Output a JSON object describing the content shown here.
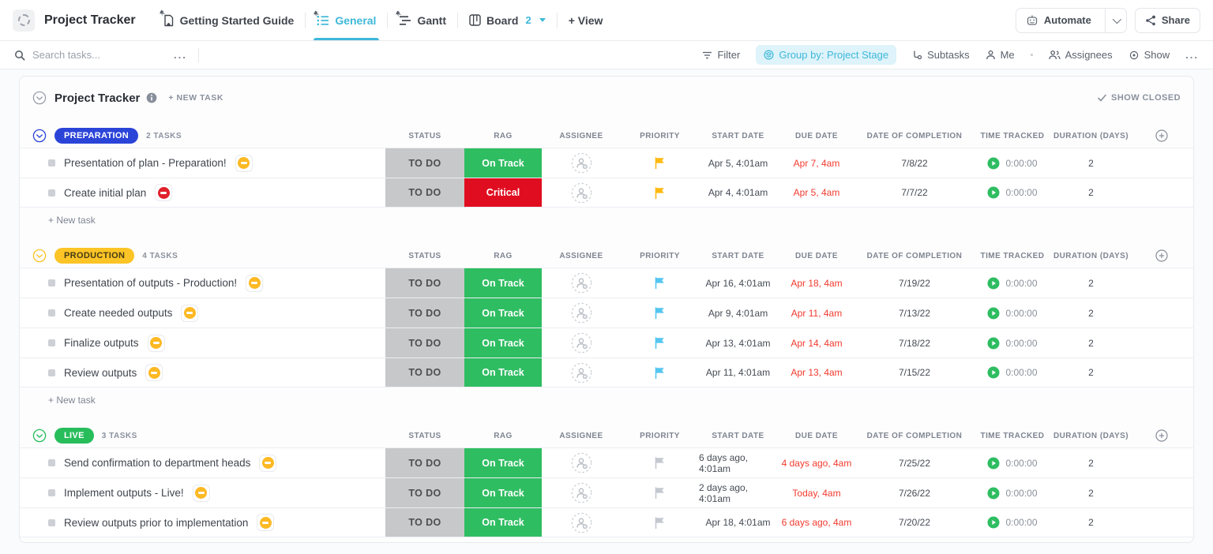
{
  "header": {
    "title": "Project Tracker",
    "tabs": [
      {
        "label": "Getting Started Guide",
        "icon": "doc-icon",
        "active": false,
        "pinned": true,
        "badge": ""
      },
      {
        "label": "General",
        "icon": "list-icon",
        "active": true,
        "pinned": true,
        "badge": ""
      },
      {
        "label": "Gantt",
        "icon": "gantt-icon",
        "active": false,
        "pinned": true,
        "badge": ""
      },
      {
        "label": "Board",
        "icon": "board-icon",
        "active": false,
        "pinned": false,
        "badge": "2"
      }
    ],
    "add_view_label": "+ View",
    "automate_label": "Automate",
    "share_label": "Share"
  },
  "toolbar": {
    "search_placeholder": "Search tasks...",
    "more_label": "...",
    "filter_label": "Filter",
    "group_by_label": "Group by: Project Stage",
    "subtasks_label": "Subtasks",
    "me_label": "Me",
    "assignees_label": "Assignees",
    "show_label": "Show",
    "overflow_label": "..."
  },
  "list": {
    "title": "Project Tracker",
    "new_task_label": "+ NEW TASK",
    "show_closed_label": "SHOW CLOSED",
    "add_row_label": "+ New task",
    "columns": [
      "STATUS",
      "RAG",
      "ASSIGNEE",
      "PRIORITY",
      "START DATE",
      "DUE DATE",
      "DATE OF COMPLETION",
      "TIME TRACKED",
      "DURATION (DAYS)"
    ],
    "colors": {
      "status_todo_bg": "#c7c8ca",
      "on_track_green": "#2fbd62",
      "critical_red": "#e00d20",
      "overdue_red": "#f23a2e",
      "accent_teal": "#3db8d9"
    },
    "groups": [
      {
        "name": "PREPARATION",
        "count_label": "2 TASKS",
        "color": "#2b44d8",
        "text_color": "#ffffff",
        "tasks": [
          {
            "name": "Presentation of plan - Preparation!",
            "badge_color": "#fdb924",
            "status": "TO DO",
            "rag": "On Track",
            "rag_color": "#2fbd62",
            "flag_color": "#ffb90f",
            "start": "Apr 5, 4:01am",
            "due": "Apr 7, 4am",
            "completion": "7/8/22",
            "time": "0:00:00",
            "duration": "2"
          },
          {
            "name": "Create initial plan",
            "badge_color": "#e0212b",
            "status": "TO DO",
            "rag": "Critical",
            "rag_color": "#e00d20",
            "flag_color": "#ffb90f",
            "start": "Apr 4, 4:01am",
            "due": "Apr 5, 4am",
            "completion": "7/7/22",
            "time": "0:00:00",
            "duration": "2"
          }
        ]
      },
      {
        "name": "PRODUCTION",
        "count_label": "4 TASKS",
        "color": "#fcc426",
        "text_color": "#443a15",
        "tasks": [
          {
            "name": "Presentation of outputs - Production!",
            "badge_color": "#fdb924",
            "status": "TO DO",
            "rag": "On Track",
            "rag_color": "#2fbd62",
            "flag_color": "#54c6f0",
            "start": "Apr 16, 4:01am",
            "due": "Apr 18, 4am",
            "completion": "7/19/22",
            "time": "0:00:00",
            "duration": "2"
          },
          {
            "name": "Create needed outputs",
            "badge_color": "#fdb924",
            "status": "TO DO",
            "rag": "On Track",
            "rag_color": "#2fbd62",
            "flag_color": "#54c6f0",
            "start": "Apr 9, 4:01am",
            "due": "Apr 11, 4am",
            "completion": "7/13/22",
            "time": "0:00:00",
            "duration": "2"
          },
          {
            "name": "Finalize outputs",
            "badge_color": "#fdb924",
            "status": "TO DO",
            "rag": "On Track",
            "rag_color": "#2fbd62",
            "flag_color": "#54c6f0",
            "start": "Apr 13, 4:01am",
            "due": "Apr 14, 4am",
            "completion": "7/18/22",
            "time": "0:00:00",
            "duration": "2"
          },
          {
            "name": "Review outputs",
            "badge_color": "#fdb924",
            "status": "TO DO",
            "rag": "On Track",
            "rag_color": "#2fbd62",
            "flag_color": "#54c6f0",
            "start": "Apr 11, 4:01am",
            "due": "Apr 13, 4am",
            "completion": "7/15/22",
            "time": "0:00:00",
            "duration": "2"
          }
        ]
      },
      {
        "name": "LIVE",
        "count_label": "3 TASKS",
        "color": "#27bd5b",
        "text_color": "#ffffff",
        "tasks": [
          {
            "name": "Send confirmation to department heads",
            "badge_color": "#fdb924",
            "status": "TO DO",
            "rag": "On Track",
            "rag_color": "#2fbd62",
            "flag_color": "#c4c9d0",
            "start": "6 days ago, 4:01am",
            "due": "4 days ago, 4am",
            "completion": "7/25/22",
            "time": "0:00:00",
            "duration": "2"
          },
          {
            "name": "Implement outputs - Live!",
            "badge_color": "#fdb924",
            "status": "TO DO",
            "rag": "On Track",
            "rag_color": "#2fbd62",
            "flag_color": "#c4c9d0",
            "start": "2 days ago, 4:01am",
            "due": "Today, 4am",
            "completion": "7/26/22",
            "time": "0:00:00",
            "duration": "2"
          },
          {
            "name": "Review outputs prior to implementation",
            "badge_color": "#fdb924",
            "status": "TO DO",
            "rag": "On Track",
            "rag_color": "#2fbd62",
            "flag_color": "#c4c9d0",
            "start": "Apr 18, 4:01am",
            "due": "6 days ago, 4am",
            "completion": "7/20/22",
            "time": "0:00:00",
            "duration": "2"
          }
        ]
      }
    ]
  }
}
